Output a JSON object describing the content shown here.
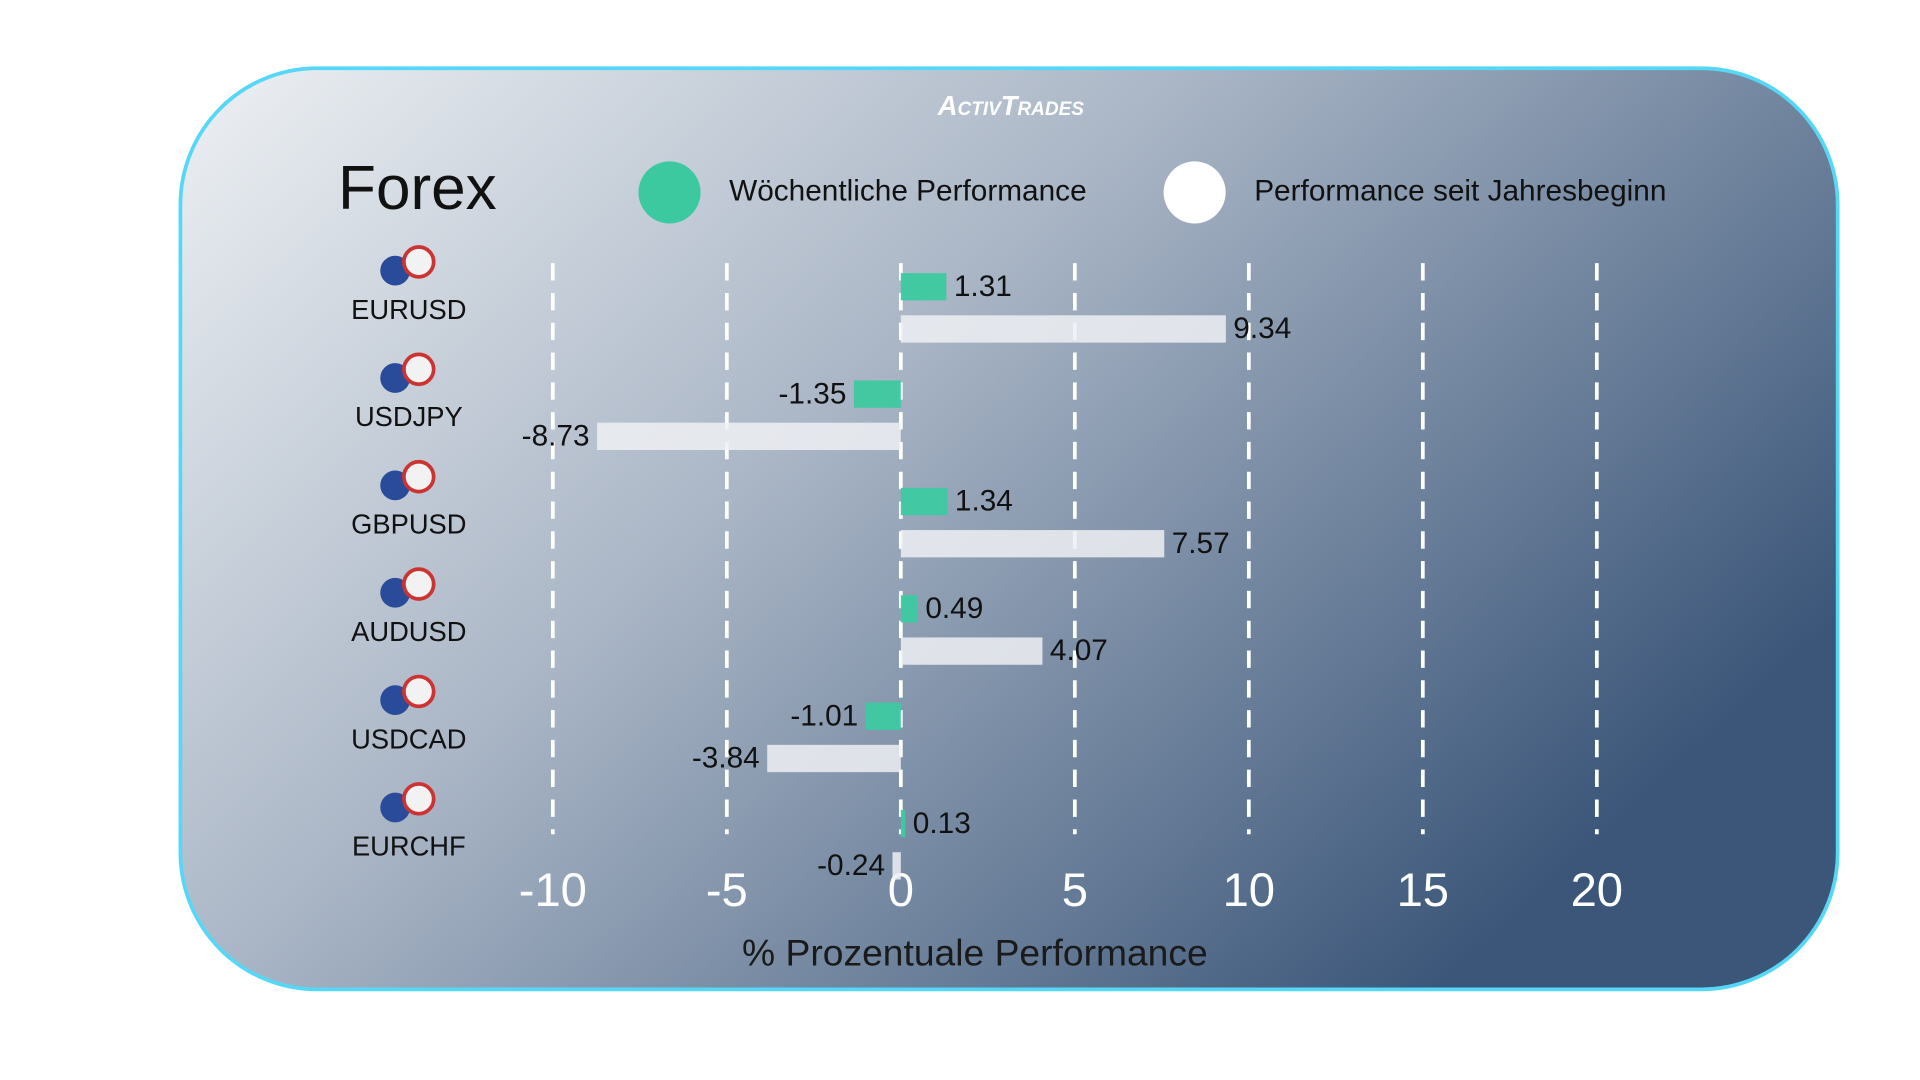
{
  "brand": "ActivTrades",
  "chart_data": {
    "type": "hbar",
    "title": "Forex",
    "xlabel": "% Prozentuale Performance",
    "categories": [
      "EURUSD",
      "USDJPY",
      "GBPUSD",
      "AUDUSD",
      "USDCAD",
      "EURCHF"
    ],
    "series": [
      {
        "name": "Wöchentliche Performance",
        "color": "#3dc9a0",
        "values": [
          1.31,
          -1.35,
          1.34,
          0.49,
          -1.01,
          0.13
        ]
      },
      {
        "name": "Performance seit Jahresbeginn",
        "color": "#eef0f3",
        "values": [
          9.34,
          -8.73,
          7.57,
          4.07,
          -3.84,
          -0.24
        ]
      }
    ],
    "xlim": [
      -10,
      20
    ],
    "xticks": [
      -10,
      -5,
      0,
      5,
      10,
      15,
      20
    ],
    "grid": true,
    "legend": "top"
  }
}
